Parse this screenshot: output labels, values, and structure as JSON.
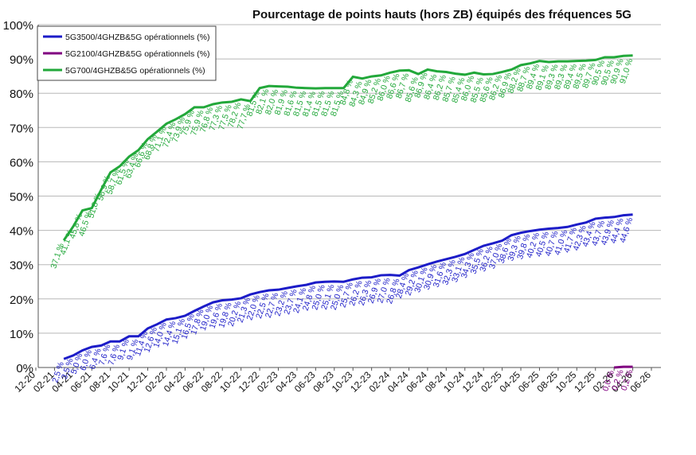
{
  "chart_data": {
    "type": "line",
    "title": "Pourcentage de points hauts (hors ZB) équipés des fréquences 5G",
    "xlim": [
      0,
      66
    ],
    "xticks": [
      {
        "value": 0,
        "label": "12-20"
      },
      {
        "value": 2,
        "label": "02-21"
      },
      {
        "value": 4,
        "label": "04-21"
      },
      {
        "value": 6,
        "label": "06-21"
      },
      {
        "value": 8,
        "label": "08-21"
      },
      {
        "value": 10,
        "label": "10-21"
      },
      {
        "value": 12,
        "label": "12-21"
      },
      {
        "value": 14,
        "label": "02-22"
      },
      {
        "value": 16,
        "label": "04-22"
      },
      {
        "value": 18,
        "label": "06-22"
      },
      {
        "value": 20,
        "label": "08-22"
      },
      {
        "value": 22,
        "label": "10-22"
      },
      {
        "value": 24,
        "label": "12-22"
      },
      {
        "value": 26,
        "label": "02-23"
      },
      {
        "value": 28,
        "label": "04-23"
      },
      {
        "value": 30,
        "label": "06-23"
      },
      {
        "value": 32,
        "label": "08-23"
      },
      {
        "value": 34,
        "label": "10-23"
      },
      {
        "value": 36,
        "label": "12-23"
      },
      {
        "value": 38,
        "label": "02-24"
      },
      {
        "value": 40,
        "label": "04-24"
      },
      {
        "value": 42,
        "label": "06-24"
      },
      {
        "value": 44,
        "label": "08-24"
      },
      {
        "value": 46,
        "label": "10-24"
      },
      {
        "value": 48,
        "label": "12-24"
      },
      {
        "value": 50,
        "label": "02-25"
      },
      {
        "value": 52,
        "label": "04-25"
      },
      {
        "value": 54,
        "label": "06-25"
      },
      {
        "value": 56,
        "label": "08-25"
      },
      {
        "value": 58,
        "label": "10-25"
      },
      {
        "value": 60,
        "label": "12-25"
      },
      {
        "value": 62,
        "label": "02-26"
      },
      {
        "value": 64,
        "label": "04-26"
      },
      {
        "value": 66,
        "label": "06-26"
      }
    ],
    "ylim": [
      0,
      100
    ],
    "yticks": [
      {
        "value": 0,
        "label": "0%"
      },
      {
        "value": 10,
        "label": "10%"
      },
      {
        "value": 20,
        "label": "20%"
      },
      {
        "value": 30,
        "label": "30%"
      },
      {
        "value": 40,
        "label": "40%"
      },
      {
        "value": 50,
        "label": "50%"
      },
      {
        "value": 60,
        "label": "60%"
      },
      {
        "value": 70,
        "label": "70%"
      },
      {
        "value": 80,
        "label": "80%"
      },
      {
        "value": 90,
        "label": "90%"
      },
      {
        "value": 100,
        "label": "100%"
      }
    ],
    "grid": true,
    "legend": "upper left",
    "series": [
      {
        "name": "5G3500/4GHZB&5G opérationnels (%)",
        "color": "#1c1cc8",
        "x": [
          3,
          4,
          5,
          6,
          7,
          8,
          9,
          10,
          11,
          12,
          13,
          14,
          15,
          16,
          17,
          18,
          19,
          20,
          21,
          22,
          23,
          24,
          25,
          26,
          27,
          28,
          29,
          30,
          31,
          32,
          33,
          34,
          35,
          36,
          37,
          38,
          39,
          40,
          41,
          42,
          43,
          44,
          45,
          46,
          47,
          48,
          49,
          50,
          51,
          52,
          53,
          54,
          55,
          56,
          57,
          58,
          59,
          60,
          61,
          62,
          63,
          64
        ],
        "values": [
          2.5,
          3.5,
          5.0,
          6.0,
          6.4,
          7.6,
          7.6,
          9.1,
          9.1,
          11.4,
          12.6,
          14.0,
          14.4,
          15.1,
          16.5,
          17.8,
          19.0,
          19.6,
          19.8,
          20.2,
          21.3,
          22.0,
          22.5,
          22.7,
          23.2,
          23.7,
          24.1,
          24.8,
          25.0,
          25.1,
          25.0,
          25.7,
          26.2,
          26.3,
          26.9,
          27.0,
          26.8,
          28.4,
          29.2,
          30.1,
          30.9,
          31.6,
          32.3,
          33.1,
          34.3,
          35.5,
          36.2,
          37.0,
          38.6,
          39.3,
          39.8,
          40.2,
          40.5,
          40.7,
          41.0,
          41.7,
          42.3,
          43.4,
          43.7,
          43.9,
          44.4,
          44.6
        ],
        "value_labels": [
          "2,5 %",
          "3,5 %",
          "5,0 %",
          "6,0 %",
          "6,4 %",
          "7,6 %",
          "7,6 %",
          "9,1 %",
          "9,1 %",
          "11,4 %",
          "12,6 %",
          "14,0 %",
          "14,4 %",
          "15,1 %",
          "16,5 %",
          "17,8 %",
          "19,0 %",
          "19,6 %",
          "19,8 %",
          "20,2 %",
          "21,3 %",
          "22,0 %",
          "22,5 %",
          "22,7 %",
          "23,2 %",
          "23,7 %",
          "24,1 %",
          "24,8 %",
          "25,0 %",
          "25,1 %",
          "25,0 %",
          "25,7 %",
          "26,2 %",
          "26,3 %",
          "26,9 %",
          "27,0 %",
          "26,8 %",
          "28,4 %",
          "29,2 %",
          "30,1 %",
          "30,9 %",
          "31,6 %",
          "32,3 %",
          "33,1 %",
          "34,3 %",
          "35,5 %",
          "36,2 %",
          "37,0 %",
          "38,6 %",
          "39,3 %",
          "39,8 %",
          "40,2 %",
          "40,5 %",
          "40,7 %",
          "41,0 %",
          "41,7 %",
          "42,3 %",
          "43,4 %",
          "43,7 %",
          "43,9 %",
          "44,4 %",
          "44,6 %"
        ]
      },
      {
        "name": "5G2100/4GHZB&5G opérationnels (%)",
        "color": "#800080",
        "x": [
          62,
          63,
          64
        ],
        "values": [
          0.0,
          0.2,
          0.2
        ],
        "value_labels": [
          "0,0 %",
          "0,2 %",
          "0,2 %"
        ]
      },
      {
        "name": "5G700/4GHZB&5G opérationnels (%)",
        "color": "#22a83a",
        "x": [
          3,
          4,
          5,
          6,
          7,
          8,
          9,
          10,
          11,
          12,
          13,
          14,
          15,
          16,
          17,
          18,
          19,
          20,
          21,
          22,
          23,
          24,
          25,
          26,
          27,
          28,
          29,
          30,
          31,
          32,
          33,
          34,
          35,
          36,
          37,
          38,
          39,
          40,
          41,
          42,
          43,
          44,
          45,
          46,
          47,
          48,
          49,
          50,
          51,
          52,
          53,
          54,
          55,
          56,
          57,
          58,
          59,
          60,
          61,
          62,
          63,
          64
        ],
        "values": [
          37.1,
          41.1,
          45.8,
          46.5,
          51.8,
          56.9,
          58.7,
          61.5,
          63.4,
          66.6,
          68.8,
          71.1,
          72.4,
          73.9,
          75.9,
          75.9,
          76.8,
          77.3,
          77.5,
          78.2,
          77.7,
          81.5,
          82.1,
          82.0,
          81.9,
          81.6,
          81.5,
          81.4,
          81.5,
          81.5,
          81.5,
          84.8,
          84.3,
          84.9,
          85.2,
          86.0,
          86.6,
          86.7,
          85.6,
          86.9,
          86.4,
          86.2,
          85.7,
          85.4,
          86.0,
          85.5,
          85.6,
          86.2,
          86.9,
          88.2,
          88.7,
          89.4,
          89.1,
          89.3,
          89.3,
          89.4,
          89.5,
          89.7,
          90.5,
          90.5,
          90.9,
          91.0
        ],
        "value_labels": [
          "37,1 %",
          "41,1 %",
          "45,8 %",
          "46,5 %",
          "51,8 %",
          "56,9 %",
          "58,7 %",
          "61,5 %",
          "63,4 %",
          "66,6 %",
          "68,8 %",
          "71,1 %",
          "72,4 %",
          "73,9 %",
          "75,9 %",
          "75,9 %",
          "76,8 %",
          "77,3 %",
          "77,5 %",
          "78,2 %",
          "77,7 %",
          "81,5 %",
          "82,1 %",
          "82,0 %",
          "81,9 %",
          "81,6 %",
          "81,5 %",
          "81,4 %",
          "81,5 %",
          "81,5 %",
          "81,5 %",
          "84,8 %",
          "84,3 %",
          "84,9 %",
          "85,2 %",
          "86,0 %",
          "86,6 %",
          "86,7 %",
          "85,6 %",
          "86,9 %",
          "86,4 %",
          "86,2 %",
          "85,7 %",
          "85,4 %",
          "86,0 %",
          "85,5 %",
          "85,6 %",
          "86,2 %",
          "86,9 %",
          "88,2 %",
          "88,7 %",
          "89,4 %",
          "89,1 %",
          "89,3 %",
          "89,3 %",
          "89,4 %",
          "89,5 %",
          "89,7 %",
          "90,5 %",
          "90,5 %",
          "90,9 %",
          "91,0 %"
        ]
      }
    ]
  }
}
